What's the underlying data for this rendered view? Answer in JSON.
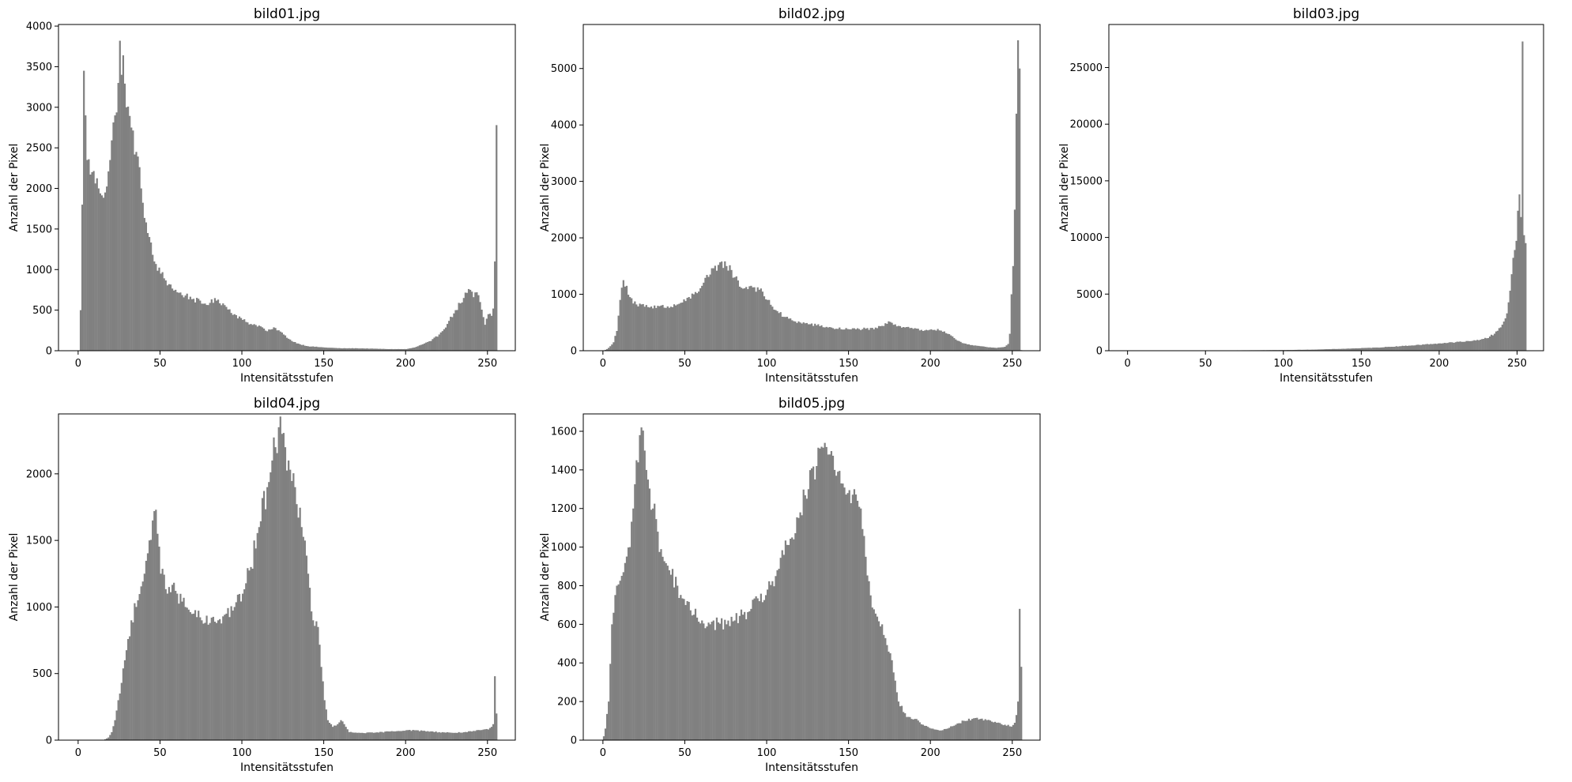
{
  "figure": {
    "background": "#ffffff",
    "bar_color": "#808080"
  },
  "chart_data": [
    {
      "type": "bar",
      "title": "bild01.jpg",
      "xlabel": "Intensitätsstufen",
      "ylabel": "Anzahl der Pixel",
      "xlim": [
        -12,
        267
      ],
      "ylim": [
        0,
        4020
      ],
      "xticks": [
        0,
        50,
        100,
        150,
        200,
        250
      ],
      "yticks": [
        0,
        500,
        1000,
        1500,
        2000,
        2500,
        3000,
        3500,
        4000
      ],
      "bins": 256,
      "anchors": [
        [
          0,
          0
        ],
        [
          1,
          500
        ],
        [
          2,
          1800
        ],
        [
          3,
          3450
        ],
        [
          4,
          2900
        ],
        [
          5,
          2350
        ],
        [
          8,
          2200
        ],
        [
          12,
          2000
        ],
        [
          16,
          1950
        ],
        [
          19,
          2350
        ],
        [
          22,
          2900
        ],
        [
          24,
          3300
        ],
        [
          25,
          3820
        ],
        [
          26,
          3400
        ],
        [
          27,
          3640
        ],
        [
          29,
          3000
        ],
        [
          32,
          2750
        ],
        [
          35,
          2450
        ],
        [
          38,
          2000
        ],
        [
          42,
          1450
        ],
        [
          46,
          1100
        ],
        [
          50,
          950
        ],
        [
          55,
          820
        ],
        [
          60,
          720
        ],
        [
          65,
          680
        ],
        [
          70,
          640
        ],
        [
          75,
          580
        ],
        [
          80,
          590
        ],
        [
          85,
          630
        ],
        [
          90,
          540
        ],
        [
          95,
          450
        ],
        [
          100,
          380
        ],
        [
          105,
          330
        ],
        [
          110,
          310
        ],
        [
          115,
          240
        ],
        [
          120,
          280
        ],
        [
          125,
          200
        ],
        [
          130,
          120
        ],
        [
          135,
          80
        ],
        [
          140,
          55
        ],
        [
          150,
          40
        ],
        [
          160,
          30
        ],
        [
          170,
          30
        ],
        [
          180,
          25
        ],
        [
          190,
          20
        ],
        [
          200,
          20
        ],
        [
          205,
          40
        ],
        [
          210,
          80
        ],
        [
          215,
          120
        ],
        [
          220,
          200
        ],
        [
          225,
          330
        ],
        [
          230,
          500
        ],
        [
          235,
          650
        ],
        [
          238,
          760
        ],
        [
          241,
          660
        ],
        [
          243,
          720
        ],
        [
          245,
          600
        ],
        [
          248,
          320
        ],
        [
          250,
          450
        ],
        [
          252,
          430
        ],
        [
          253,
          520
        ],
        [
          254,
          1100
        ],
        [
          255,
          2780
        ]
      ]
    },
    {
      "type": "bar",
      "title": "bild02.jpg",
      "xlabel": "Intensitätsstufen",
      "ylabel": "Anzahl der Pixel",
      "xlim": [
        -12,
        267
      ],
      "ylim": [
        0,
        5780
      ],
      "xticks": [
        0,
        50,
        100,
        150,
        200,
        250
      ],
      "yticks": [
        0,
        1000,
        2000,
        3000,
        4000,
        5000
      ],
      "bins": 256,
      "anchors": [
        [
          0,
          0
        ],
        [
          2,
          30
        ],
        [
          4,
          80
        ],
        [
          6,
          150
        ],
        [
          8,
          350
        ],
        [
          10,
          900
        ],
        [
          12,
          1250
        ],
        [
          14,
          1150
        ],
        [
          16,
          950
        ],
        [
          20,
          820
        ],
        [
          25,
          780
        ],
        [
          30,
          750
        ],
        [
          35,
          800
        ],
        [
          40,
          760
        ],
        [
          45,
          820
        ],
        [
          50,
          880
        ],
        [
          55,
          1000
        ],
        [
          60,
          1150
        ],
        [
          65,
          1350
        ],
        [
          70,
          1520
        ],
        [
          72,
          1580
        ],
        [
          75,
          1500
        ],
        [
          78,
          1430
        ],
        [
          80,
          1300
        ],
        [
          85,
          1100
        ],
        [
          90,
          1150
        ],
        [
          95,
          1080
        ],
        [
          100,
          900
        ],
        [
          105,
          720
        ],
        [
          110,
          600
        ],
        [
          115,
          540
        ],
        [
          120,
          500
        ],
        [
          130,
          450
        ],
        [
          140,
          400
        ],
        [
          150,
          380
        ],
        [
          160,
          390
        ],
        [
          165,
          380
        ],
        [
          170,
          440
        ],
        [
          175,
          510
        ],
        [
          180,
          440
        ],
        [
          185,
          420
        ],
        [
          190,
          400
        ],
        [
          195,
          350
        ],
        [
          200,
          380
        ],
        [
          205,
          360
        ],
        [
          210,
          300
        ],
        [
          215,
          200
        ],
        [
          220,
          130
        ],
        [
          225,
          100
        ],
        [
          230,
          80
        ],
        [
          235,
          60
        ],
        [
          240,
          50
        ],
        [
          245,
          70
        ],
        [
          247,
          120
        ],
        [
          248,
          300
        ],
        [
          249,
          1000
        ],
        [
          250,
          1500
        ],
        [
          251,
          2500
        ],
        [
          252,
          4200
        ],
        [
          253,
          5500
        ],
        [
          254,
          5000
        ],
        [
          255,
          10
        ]
      ]
    },
    {
      "type": "bar",
      "title": "bild03.jpg",
      "xlabel": "Intensitätsstufen",
      "ylabel": "Anzahl der Pixel",
      "xlim": [
        -12,
        267
      ],
      "ylim": [
        0,
        28800
      ],
      "xticks": [
        0,
        50,
        100,
        150,
        200,
        250
      ],
      "yticks": [
        0,
        5000,
        10000,
        15000,
        20000,
        25000
      ],
      "bins": 256,
      "anchors": [
        [
          0,
          10
        ],
        [
          50,
          20
        ],
        [
          100,
          60
        ],
        [
          120,
          100
        ],
        [
          140,
          180
        ],
        [
          160,
          280
        ],
        [
          180,
          450
        ],
        [
          200,
          650
        ],
        [
          210,
          750
        ],
        [
          220,
          850
        ],
        [
          230,
          1100
        ],
        [
          235,
          1500
        ],
        [
          240,
          2300
        ],
        [
          243,
          3300
        ],
        [
          245,
          5300
        ],
        [
          247,
          8200
        ],
        [
          249,
          9700
        ],
        [
          251,
          13800
        ],
        [
          252,
          11800
        ],
        [
          253,
          27300
        ],
        [
          254,
          10200
        ],
        [
          255,
          9500
        ]
      ]
    },
    {
      "type": "bar",
      "title": "bild04.jpg",
      "xlabel": "Intensitätsstufen",
      "ylabel": "Anzahl der Pixel",
      "xlim": [
        -12,
        267
      ],
      "ylim": [
        0,
        2450
      ],
      "xticks": [
        0,
        50,
        100,
        150,
        200,
        250
      ],
      "yticks": [
        0,
        500,
        1000,
        1500,
        2000
      ],
      "bins": 256,
      "anchors": [
        [
          0,
          0
        ],
        [
          15,
          0
        ],
        [
          18,
          20
        ],
        [
          20,
          60
        ],
        [
          22,
          150
        ],
        [
          25,
          350
        ],
        [
          28,
          600
        ],
        [
          32,
          900
        ],
        [
          36,
          1050
        ],
        [
          40,
          1250
        ],
        [
          43,
          1500
        ],
        [
          45,
          1650
        ],
        [
          46,
          1720
        ],
        [
          48,
          1550
        ],
        [
          50,
          1250
        ],
        [
          55,
          1150
        ],
        [
          60,
          1100
        ],
        [
          65,
          1000
        ],
        [
          70,
          950
        ],
        [
          75,
          900
        ],
        [
          80,
          880
        ],
        [
          85,
          900
        ],
        [
          90,
          950
        ],
        [
          95,
          1000
        ],
        [
          100,
          1100
        ],
        [
          105,
          1300
        ],
        [
          110,
          1600
        ],
        [
          115,
          1900
        ],
        [
          118,
          2100
        ],
        [
          120,
          2200
        ],
        [
          122,
          2350
        ],
        [
          124,
          2300
        ],
        [
          126,
          2200
        ],
        [
          128,
          2100
        ],
        [
          132,
          1900
        ],
        [
          136,
          1600
        ],
        [
          140,
          1250
        ],
        [
          143,
          900
        ],
        [
          146,
          850
        ],
        [
          148,
          550
        ],
        [
          150,
          300
        ],
        [
          152,
          150
        ],
        [
          155,
          100
        ],
        [
          158,
          120
        ],
        [
          160,
          150
        ],
        [
          163,
          100
        ],
        [
          165,
          60
        ],
        [
          170,
          55
        ],
        [
          180,
          55
        ],
        [
          190,
          65
        ],
        [
          200,
          75
        ],
        [
          210,
          70
        ],
        [
          220,
          60
        ],
        [
          230,
          55
        ],
        [
          240,
          65
        ],
        [
          245,
          75
        ],
        [
          250,
          80
        ],
        [
          252,
          100
        ],
        [
          253,
          120
        ],
        [
          254,
          480
        ],
        [
          255,
          200
        ]
      ]
    },
    {
      "type": "bar",
      "title": "bild05.jpg",
      "xlabel": "Intensitätsstufen",
      "ylabel": "Anzahl der Pixel",
      "xlim": [
        -12,
        267
      ],
      "ylim": [
        0,
        1690
      ],
      "xticks": [
        0,
        50,
        100,
        150,
        200,
        250
      ],
      "yticks": [
        0,
        200,
        400,
        600,
        800,
        1000,
        1200,
        1400,
        1600
      ],
      "bins": 256,
      "anchors": [
        [
          0,
          20
        ],
        [
          1,
          60
        ],
        [
          3,
          200
        ],
        [
          5,
          600
        ],
        [
          8,
          800
        ],
        [
          12,
          870
        ],
        [
          16,
          1000
        ],
        [
          18,
          1200
        ],
        [
          20,
          1450
        ],
        [
          22,
          1580
        ],
        [
          23,
          1620
        ],
        [
          25,
          1500
        ],
        [
          27,
          1350
        ],
        [
          30,
          1200
        ],
        [
          33,
          1080
        ],
        [
          36,
          950
        ],
        [
          40,
          880
        ],
        [
          45,
          800
        ],
        [
          50,
          700
        ],
        [
          55,
          650
        ],
        [
          60,
          620
        ],
        [
          65,
          600
        ],
        [
          70,
          610
        ],
        [
          75,
          600
        ],
        [
          80,
          620
        ],
        [
          85,
          650
        ],
        [
          90,
          680
        ],
        [
          95,
          720
        ],
        [
          100,
          780
        ],
        [
          105,
          850
        ],
        [
          110,
          960
        ],
        [
          115,
          1050
        ],
        [
          120,
          1180
        ],
        [
          125,
          1300
        ],
        [
          130,
          1420
        ],
        [
          133,
          1520
        ],
        [
          135,
          1540
        ],
        [
          138,
          1480
        ],
        [
          141,
          1400
        ],
        [
          145,
          1330
        ],
        [
          149,
          1280
        ],
        [
          153,
          1300
        ],
        [
          157,
          1200
        ],
        [
          160,
          950
        ],
        [
          163,
          750
        ],
        [
          167,
          640
        ],
        [
          170,
          600
        ],
        [
          175,
          450
        ],
        [
          180,
          200
        ],
        [
          185,
          120
        ],
        [
          190,
          110
        ],
        [
          195,
          80
        ],
        [
          200,
          60
        ],
        [
          205,
          50
        ],
        [
          210,
          60
        ],
        [
          215,
          80
        ],
        [
          220,
          100
        ],
        [
          225,
          110
        ],
        [
          230,
          110
        ],
        [
          235,
          105
        ],
        [
          240,
          90
        ],
        [
          245,
          80
        ],
        [
          249,
          70
        ],
        [
          251,
          90
        ],
        [
          252,
          130
        ],
        [
          253,
          200
        ],
        [
          254,
          680
        ],
        [
          255,
          380
        ]
      ]
    }
  ]
}
